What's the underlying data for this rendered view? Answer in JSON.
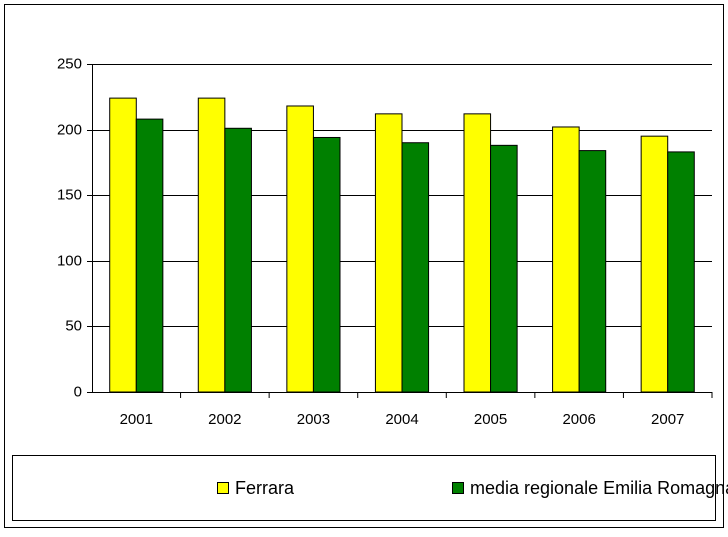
{
  "chart_data": {
    "type": "bar",
    "categories": [
      "2001",
      "2002",
      "2003",
      "2004",
      "2005",
      "2006",
      "2007"
    ],
    "series": [
      {
        "name": "Ferrara",
        "color": "#ffff00",
        "values": [
          224,
          224,
          218,
          212,
          212,
          202,
          195
        ]
      },
      {
        "name": "media regionale Emilia Romagna",
        "color": "#008000",
        "values": [
          208,
          201,
          194,
          190,
          188,
          184,
          183
        ]
      }
    ],
    "ylim": [
      0,
      250
    ],
    "yticks": [
      0,
      50,
      100,
      150,
      200,
      250
    ],
    "grid": true,
    "legend": "bottom"
  }
}
